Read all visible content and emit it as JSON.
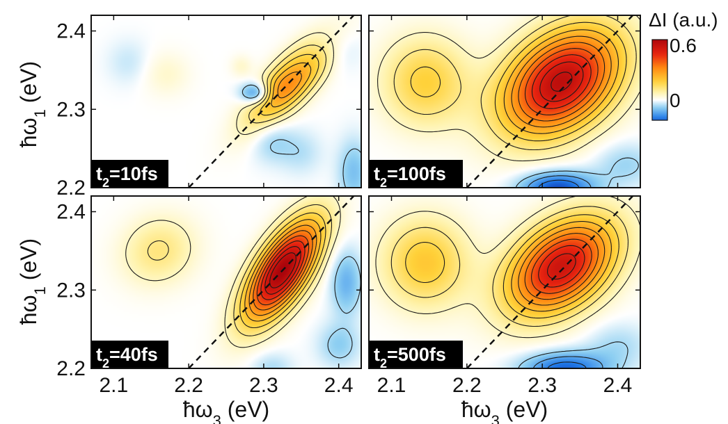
{
  "chart_data": {
    "type": "heatmap",
    "colorbar": {
      "title": "ΔI (a.u.)",
      "tick_labels": [
        "0.6",
        "0"
      ],
      "ticks": [
        0.6,
        0
      ],
      "colors": [
        "#0a1e9c",
        "#1f78e8",
        "#8fd0f2",
        "#ffffff",
        "#fff4b0",
        "#ffd23a",
        "#ff8a12",
        "#e82410",
        "#a0000a"
      ]
    },
    "x_axis": {
      "label_main": "ħω",
      "label_sub": "3",
      "label_unit": " (eV)",
      "range": [
        2.07,
        2.43
      ],
      "ticks": [
        "2.1",
        "2.2",
        "2.3",
        "2.4"
      ],
      "tick_values": [
        2.1,
        2.2,
        2.3,
        2.4
      ]
    },
    "y_axis": {
      "label_main": "ħω",
      "label_sub": "1",
      "label_unit": " (eV)",
      "range": [
        2.2,
        2.42
      ],
      "ticks": [
        "2.2",
        "2.3",
        "2.4"
      ],
      "tick_values": [
        2.2,
        2.3,
        2.4
      ]
    },
    "diagonal": "dashed line ħω1 = ħω3",
    "panels": [
      {
        "label_main": "t",
        "label_sub": "2",
        "label_rest": "=10fs",
        "peaks": [
          {
            "x": 2.335,
            "y": 2.335,
            "amp": 0.38,
            "sx": 0.05,
            "sy": 0.018,
            "rot": 45
          },
          {
            "x": 2.29,
            "y": 2.32,
            "amp": -0.22,
            "sx": 0.014,
            "sy": 0.01,
            "rot": 0
          },
          {
            "x": 2.355,
            "y": 2.36,
            "amp": -0.07,
            "sx": 0.03,
            "sy": 0.012,
            "rot": 45
          },
          {
            "x": 2.17,
            "y": 2.345,
            "amp": 0.05,
            "sx": 0.022,
            "sy": 0.02,
            "rot": 0
          },
          {
            "x": 2.27,
            "y": 2.355,
            "amp": 0.05,
            "sx": 0.01,
            "sy": 0.01,
            "rot": 0
          },
          {
            "x": 2.31,
            "y": 2.26,
            "amp": -0.07,
            "sx": 0.02,
            "sy": 0.02,
            "rot": 0
          },
          {
            "x": 2.35,
            "y": 2.245,
            "amp": -0.05,
            "sx": 0.02,
            "sy": 0.02,
            "rot": 0
          },
          {
            "x": 2.42,
            "y": 2.22,
            "amp": -0.1,
            "sx": 0.015,
            "sy": 0.03,
            "rot": 0
          },
          {
            "x": 2.12,
            "y": 2.36,
            "amp": -0.04,
            "sx": 0.02,
            "sy": 0.02,
            "rot": 0
          },
          {
            "x": 2.4,
            "y": 2.38,
            "amp": -0.05,
            "sx": 0.02,
            "sy": 0.02,
            "rot": 0
          }
        ]
      },
      {
        "label_main": "t",
        "label_sub": "2",
        "label_rest": "=100fs",
        "peaks": [
          {
            "x": 2.325,
            "y": 2.335,
            "amp": 0.62,
            "sx": 0.06,
            "sy": 0.04,
            "rot": 35
          },
          {
            "x": 2.145,
            "y": 2.335,
            "amp": 0.2,
            "sx": 0.04,
            "sy": 0.04,
            "rot": 0
          },
          {
            "x": 2.32,
            "y": 2.2,
            "amp": -0.25,
            "sx": 0.035,
            "sy": 0.015,
            "rot": 0
          },
          {
            "x": 2.41,
            "y": 2.23,
            "amp": -0.07,
            "sx": 0.03,
            "sy": 0.02,
            "rot": 0
          }
        ]
      },
      {
        "label_main": "t",
        "label_sub": "2",
        "label_rest": "=40fs",
        "peaks": [
          {
            "x": 2.325,
            "y": 2.325,
            "amp": 0.68,
            "sx": 0.052,
            "sy": 0.022,
            "rot": 55
          },
          {
            "x": 2.16,
            "y": 2.35,
            "amp": 0.13,
            "sx": 0.035,
            "sy": 0.03,
            "rot": 20
          },
          {
            "x": 2.41,
            "y": 2.31,
            "amp": -0.12,
            "sx": 0.015,
            "sy": 0.03,
            "rot": 0
          },
          {
            "x": 2.4,
            "y": 2.23,
            "amp": -0.08,
            "sx": 0.02,
            "sy": 0.02,
            "rot": 0
          },
          {
            "x": 2.31,
            "y": 2.2,
            "amp": -0.06,
            "sx": 0.02,
            "sy": 0.015,
            "rot": 0
          }
        ]
      },
      {
        "label_main": "t",
        "label_sub": "2",
        "label_rest": "=500fs",
        "peaks": [
          {
            "x": 2.325,
            "y": 2.33,
            "amp": 0.58,
            "sx": 0.055,
            "sy": 0.035,
            "rot": 35
          },
          {
            "x": 2.145,
            "y": 2.335,
            "amp": 0.22,
            "sx": 0.04,
            "sy": 0.04,
            "rot": 0
          },
          {
            "x": 2.33,
            "y": 2.2,
            "amp": -0.22,
            "sx": 0.04,
            "sy": 0.015,
            "rot": 0
          },
          {
            "x": 2.4,
            "y": 2.23,
            "amp": -0.06,
            "sx": 0.03,
            "sy": 0.02,
            "rot": 0
          }
        ]
      }
    ]
  }
}
